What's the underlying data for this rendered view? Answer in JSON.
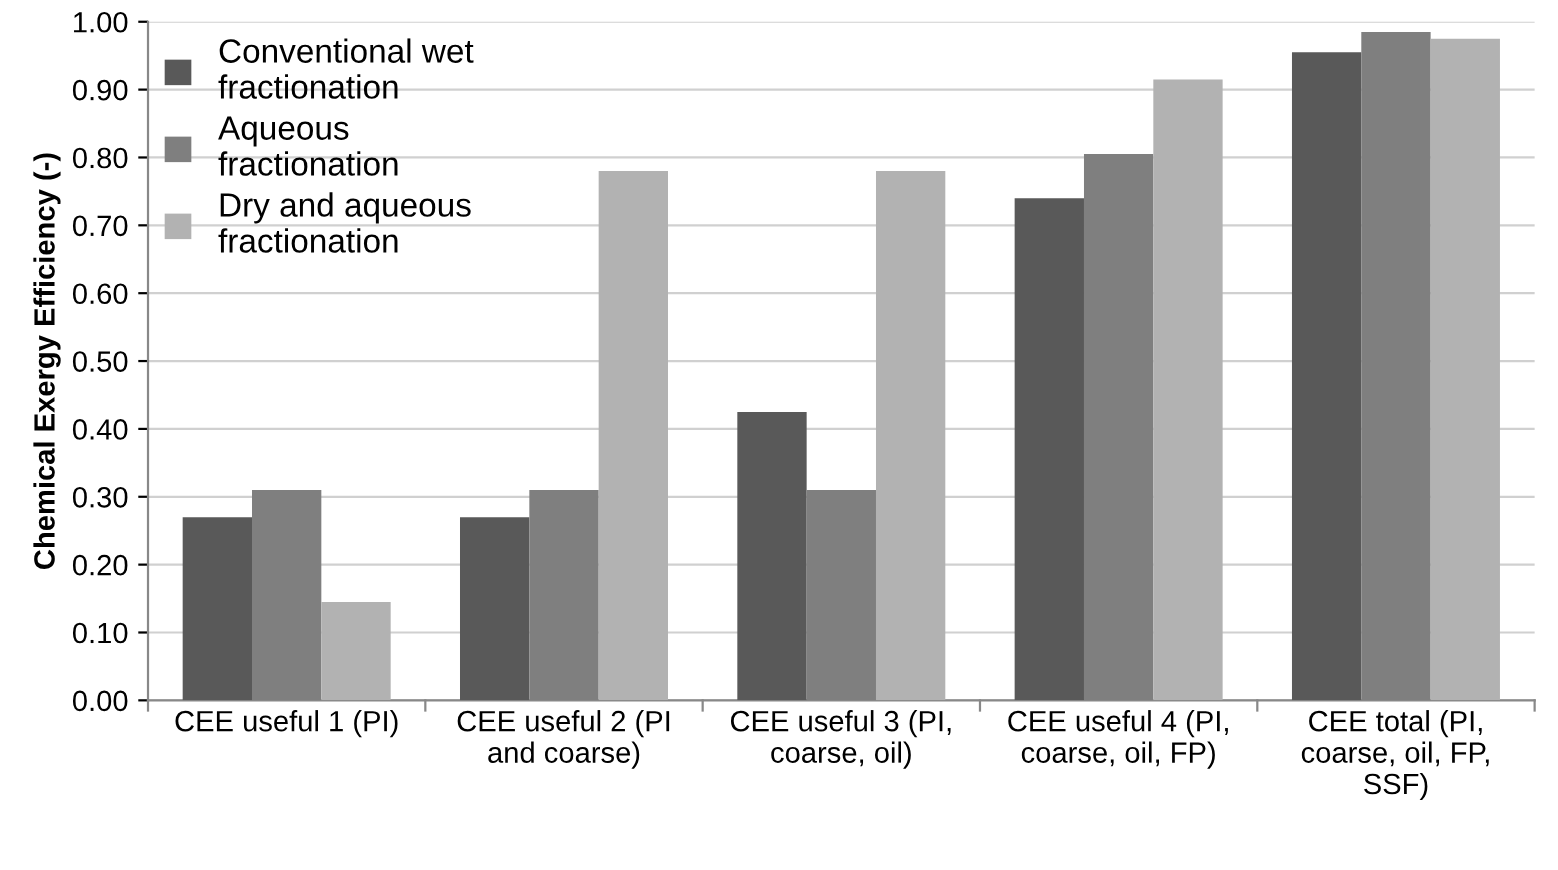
{
  "chart_data": {
    "type": "bar",
    "ylabel": "Chemical Exergy Efficiency (-)",
    "categories": [
      "CEE useful 1 (PI)",
      "CEE useful 2 (PI\nand coarse)",
      "CEE useful 3 (PI,\ncoarse, oil)",
      "CEE useful 4 (PI,\ncoarse, oil, FP)",
      "CEE total (PI,\ncoarse, oil, FP,\nSSF)"
    ],
    "series": [
      {
        "name": "Conventional wet\nfractionation",
        "color": "#595959",
        "values": [
          0.27,
          0.27,
          0.425,
          0.74,
          0.955
        ]
      },
      {
        "name": "Aqueous\nfractionation",
        "color": "#7f7f7f",
        "values": [
          0.31,
          0.31,
          0.31,
          0.805,
          0.985
        ]
      },
      {
        "name": "Dry and aqueous\nfractionation",
        "color": "#b2b2b2",
        "values": [
          0.145,
          0.78,
          0.78,
          0.915,
          0.975
        ]
      }
    ],
    "ylim": [
      0,
      1
    ],
    "yticks": [
      {
        "value": 0,
        "label": "0.00"
      },
      {
        "value": 0.1,
        "label": "0.10"
      },
      {
        "value": 0.2,
        "label": "0.20"
      },
      {
        "value": 0.3,
        "label": "0.30"
      },
      {
        "value": 0.4,
        "label": "0.40"
      },
      {
        "value": 0.5,
        "label": "0.50"
      },
      {
        "value": 0.6,
        "label": "0.60"
      },
      {
        "value": 0.7,
        "label": "0.70"
      },
      {
        "value": 0.8,
        "label": "0.80"
      },
      {
        "value": 0.9,
        "label": "0.90"
      },
      {
        "value": 1,
        "label": "1.00"
      }
    ],
    "grid": "y",
    "legend": "top left"
  }
}
